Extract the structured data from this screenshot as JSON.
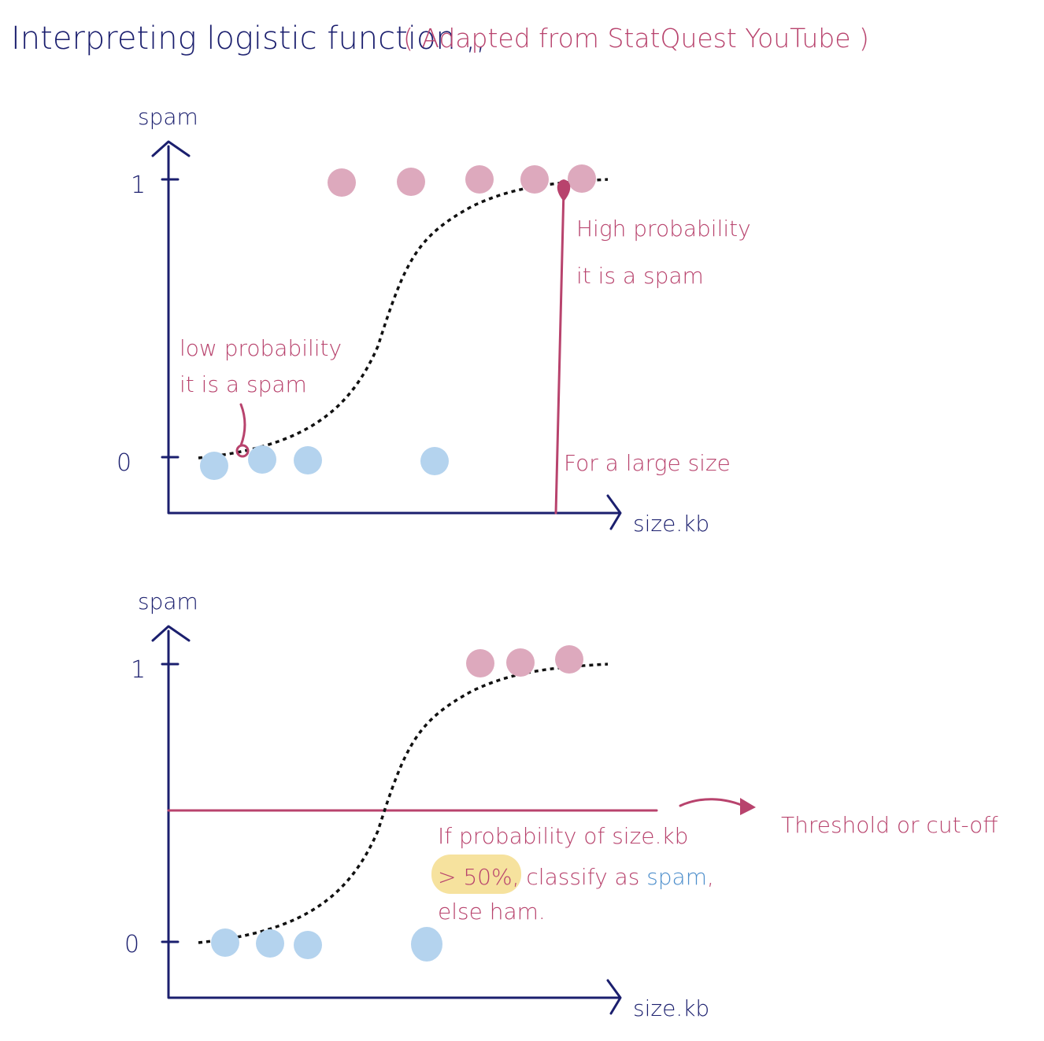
{
  "title": {
    "main": "Interpreting logistic function ,,",
    "source": "( Adapted from StatQuest YouTube )"
  },
  "colors": {
    "ink": "#1b1f6e",
    "accent": "#b8436d",
    "spam_point": "#dda9bd",
    "ham_point": "#b4d3ee",
    "highlight": "#f6e29e",
    "spam_word": "#4e8fcc"
  },
  "plots": [
    {
      "y_label": "spam",
      "x_label": "size.kb",
      "y_ticks": [
        "1",
        "0"
      ],
      "annotations": {
        "low_line1": "low probability",
        "low_line2": "it is a spam",
        "high_line1": "High probability",
        "high_line2": "it is a spam",
        "large_size": "For a large size"
      }
    },
    {
      "y_label": "spam",
      "x_label": "size.kb",
      "y_ticks": [
        "1",
        "0"
      ],
      "annotations": {
        "threshold": "Threshold or cut-off",
        "rule_line1": "If probability of size.kb",
        "rule_pct": "> 50%",
        "rule_mid": ", classify as ",
        "rule_spam": "spam",
        "rule_end": ",",
        "rule_line3": "else ham."
      }
    }
  ],
  "chart_data": [
    {
      "type": "scatter",
      "xlabel": "size.kb",
      "ylabel": "spam",
      "y_ticks": [
        "0",
        "1"
      ],
      "series": [
        {
          "name": "",
          "class": 1,
          "x": [
            0.39,
            0.55,
            0.71,
            0.85,
            0.96
          ]
        },
        {
          "name": "",
          "class": 0,
          "x": [
            0.09,
            0.2,
            0.3,
            0.59
          ]
        }
      ],
      "curve": "logistic (dashed)"
    },
    {
      "type": "scatter",
      "xlabel": "size.kb",
      "ylabel": "spam",
      "y_ticks": [
        "0",
        "1"
      ],
      "series": [
        {
          "name": "",
          "class": 1,
          "x": [
            0.71,
            0.82,
            0.94
          ]
        },
        {
          "name": "",
          "class": 0,
          "x": [
            0.12,
            0.23,
            0.33,
            0.58
          ]
        }
      ],
      "curve": "logistic (dashed)",
      "threshold": 0.5
    }
  ]
}
